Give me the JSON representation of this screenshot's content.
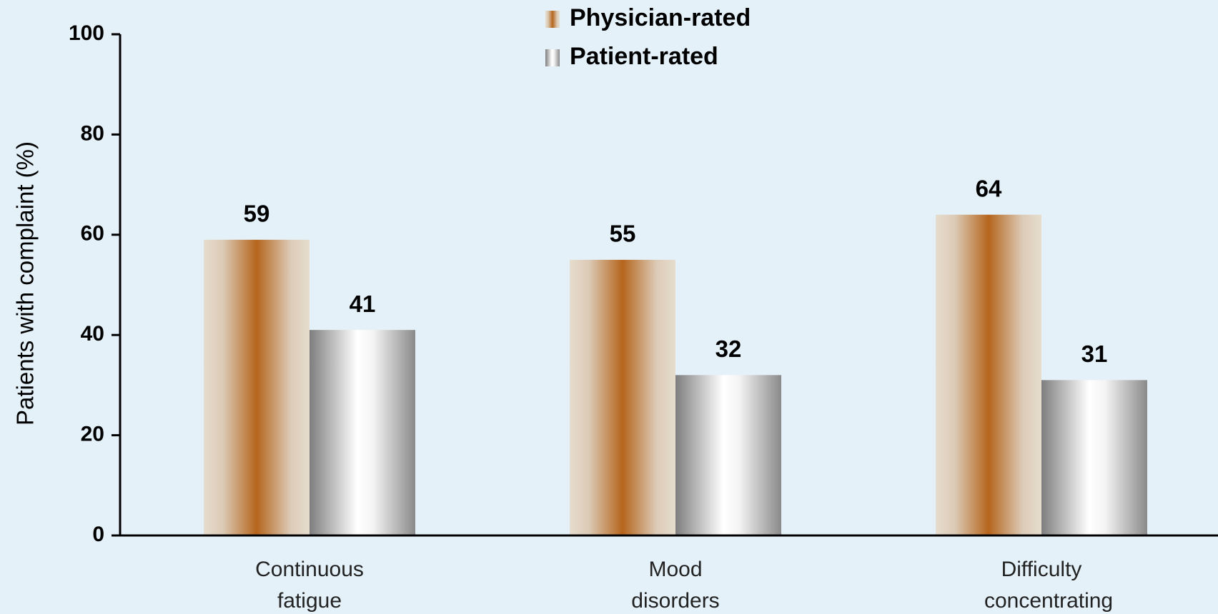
{
  "chart_data": {
    "type": "bar",
    "y_label": "Patients with complaint (%)",
    "categories": [
      "Continuous fatigue",
      "Mood disorders",
      "Difficulty concentrating"
    ],
    "series": [
      {
        "name": "Physician-rated",
        "color": "#b5651d",
        "values": [
          59,
          55,
          64
        ]
      },
      {
        "name": "Patient-rated",
        "color": "#9a9a9a",
        "values": [
          41,
          32,
          31
        ]
      }
    ],
    "ylim": [
      0,
      100
    ],
    "yticks": [
      0,
      20,
      40,
      60,
      80,
      100
    ],
    "grid": false
  }
}
